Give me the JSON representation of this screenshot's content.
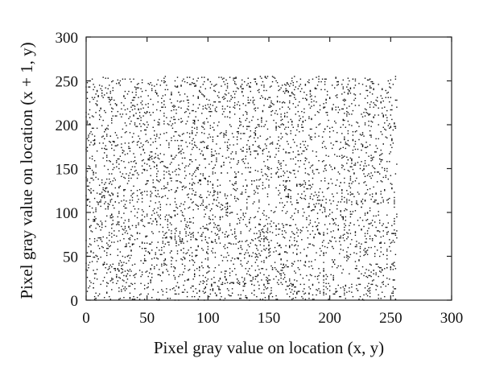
{
  "chart_data": {
    "type": "scatter",
    "title": "",
    "xlabel": "Pixel gray value on location (x, y)",
    "ylabel": "Pixel gray value on location (x + 1, y)",
    "xlim": [
      0,
      300
    ],
    "ylim": [
      0,
      300
    ],
    "xticks": [
      0,
      50,
      100,
      150,
      200,
      250,
      300
    ],
    "yticks": [
      0,
      50,
      100,
      150,
      200,
      250,
      300
    ],
    "grid": false,
    "legend": "none",
    "marker_color": "#111111",
    "series": [
      {
        "distribution": "uniform random",
        "x_range": [
          0,
          255
        ],
        "y_range": [
          0,
          255
        ],
        "point_count": 4200
      }
    ]
  }
}
